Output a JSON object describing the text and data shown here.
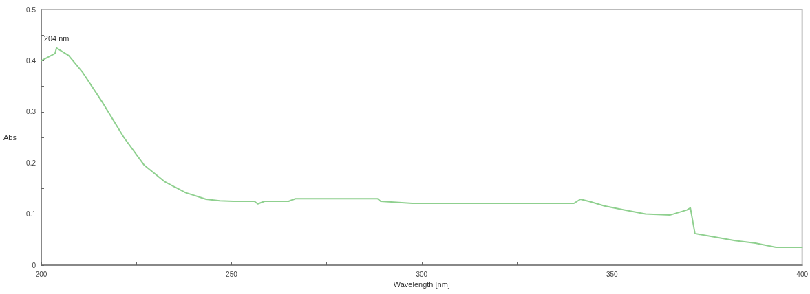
{
  "chart_data": {
    "type": "line",
    "xlabel": "Wavelength [nm]",
    "ylabel": "Abs",
    "x": [
      200,
      203.6,
      204,
      207.2,
      210.8,
      216.2,
      221.7,
      227,
      232.5,
      237.9,
      243.3,
      246.9,
      250.5,
      256,
      256.9,
      258.7,
      265,
      266.8,
      288.4,
      289.2,
      297.5,
      340,
      341.7,
      344.4,
      348,
      353.4,
      358.8,
      365.2,
      369.7,
      370.6,
      371.8,
      377,
      382.3,
      387.7,
      393.1,
      400
    ],
    "series": [
      {
        "color": "#8fd08f",
        "values": [
          0.4,
          0.414,
          0.425,
          0.41,
          0.378,
          0.317,
          0.25,
          0.196,
          0.163,
          0.142,
          0.129,
          0.126,
          0.125,
          0.125,
          0.12,
          0.125,
          0.125,
          0.13,
          0.13,
          0.125,
          0.121,
          0.121,
          0.129,
          0.124,
          0.116,
          0.108,
          0.1,
          0.098,
          0.108,
          0.112,
          0.062,
          0.055,
          0.048,
          0.043,
          0.035,
          0.035
        ]
      }
    ],
    "xlim": [
      200,
      400
    ],
    "xticks": [
      200,
      {
        "value": 225,
        "label": null
      },
      250,
      {
        "value": 275,
        "label": null
      },
      300,
      {
        "value": 325,
        "label": null
      },
      350,
      {
        "value": 375,
        "label": null
      },
      400
    ],
    "ylim": [
      0,
      0.5
    ],
    "yticks": [
      0,
      {
        "value": 0.05,
        "label": null
      },
      0.1,
      {
        "value": 0.15,
        "label": null
      },
      0.2,
      {
        "value": 0.25,
        "label": null
      },
      0.3,
      {
        "value": 0.35,
        "label": null
      },
      0.4,
      {
        "value": 0.45,
        "label": null
      },
      0.5
    ],
    "annotations": [
      {
        "text": "204 nm",
        "x": 204,
        "y": 0.425
      }
    ],
    "grid": false,
    "marker": "none",
    "line_style": "solid"
  }
}
